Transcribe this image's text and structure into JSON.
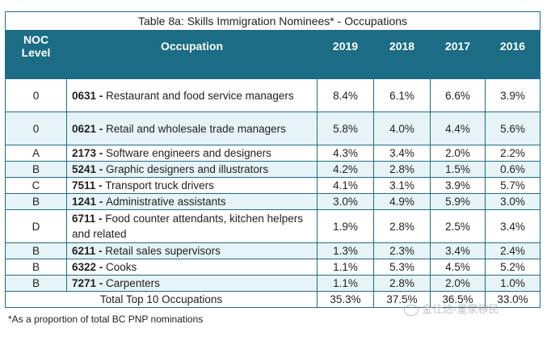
{
  "title": "Table 8a: Skills Immigration Nominees* - Occupations",
  "headers": {
    "noc_level": "NOC Level",
    "occupation": "Occupation",
    "years": [
      "2019",
      "2018",
      "2017",
      "2016"
    ]
  },
  "rows": [
    {
      "level": "0",
      "code": "0631",
      "name": "Restaurant and food service managers",
      "values": [
        "8.4%",
        "6.1%",
        "6.6%",
        "3.9%"
      ]
    },
    {
      "level": "0",
      "code": "0621",
      "name": "Retail and wholesale trade managers",
      "values": [
        "5.8%",
        "4.0%",
        "4.4%",
        "5.6%"
      ]
    },
    {
      "level": "A",
      "code": "2173",
      "name": "Software engineers and designers",
      "values": [
        "4.3%",
        "3.4%",
        "2.0%",
        "2.2%"
      ]
    },
    {
      "level": "B",
      "code": "5241",
      "name": "Graphic designers and illustrators",
      "values": [
        "4.2%",
        "2.8%",
        "1.5%",
        "0.6%"
      ]
    },
    {
      "level": "C",
      "code": "7511",
      "name": "Transport truck drivers",
      "values": [
        "4.1%",
        "3.1%",
        "3.9%",
        "5.7%"
      ]
    },
    {
      "level": "B",
      "code": "1241",
      "name": "Administrative assistants",
      "values": [
        "3.0%",
        "4.9%",
        "5.9%",
        "3.0%"
      ]
    },
    {
      "level": "D",
      "code": "6711",
      "name": "Food counter attendants, kitchen helpers and related",
      "values": [
        "1.9%",
        "2.8%",
        "2.5%",
        "3.4%"
      ]
    },
    {
      "level": "B",
      "code": "6211",
      "name": "Retail sales supervisors",
      "values": [
        "1.3%",
        "2.3%",
        "3.4%",
        "2.4%"
      ]
    },
    {
      "level": "B",
      "code": "6322",
      "name": "Cooks",
      "values": [
        "1.1%",
        "5.3%",
        "4.5%",
        "5.2%"
      ]
    },
    {
      "level": "B",
      "code": "7271",
      "name": "Carpenters",
      "values": [
        "1.1%",
        "2.8%",
        "2.0%",
        "1.0%"
      ]
    }
  ],
  "total": {
    "label": "Total Top 10 Occupations",
    "values": [
      "35.3%",
      "37.5%",
      "36.5%",
      "33.0%"
    ]
  },
  "footnote": "*As a proportion of total BC PNP nominations",
  "watermark": "金仕达-皇家移民"
}
